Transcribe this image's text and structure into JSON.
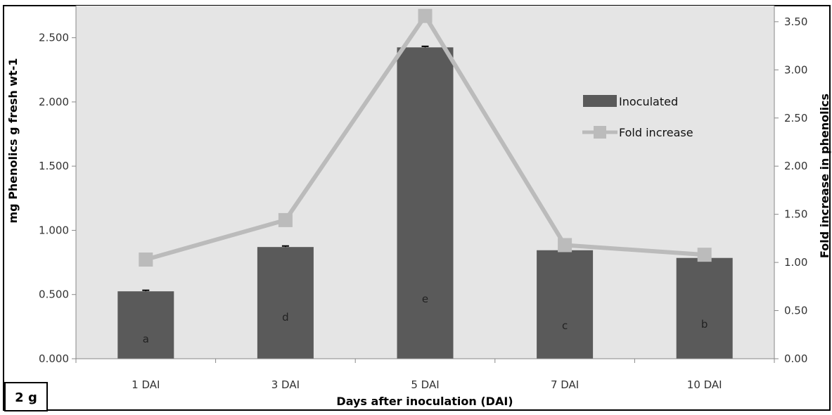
{
  "chart_data": {
    "type": "bar",
    "title": "",
    "xlabel": "Days after inoculation (DAI)",
    "ylabel": "mg Phenolics g fresh wt-1",
    "y2label": "Fold increase in phenolics",
    "categories": [
      "1 DAI",
      "3 DAI",
      "5 DAI",
      "7 DAI",
      "10 DAI"
    ],
    "ylim": [
      0,
      2.75
    ],
    "y2lim": [
      0,
      3.667
    ],
    "yticks": [
      "0.000",
      "0.500",
      "1.000",
      "1.500",
      "2.000",
      "2.500"
    ],
    "y2ticks": [
      "0.00",
      "0.50",
      "1.00",
      "1.50",
      "2.00",
      "2.50",
      "3.00",
      "3.50"
    ],
    "grid": false,
    "legend_position": "top-right",
    "series": [
      {
        "name": "Inoculated",
        "type": "bar",
        "axis": "left",
        "color": "#5a5a5a",
        "values": [
          0.525,
          0.87,
          2.425,
          0.845,
          0.785
        ],
        "error": [
          0.008,
          0.008,
          0.008,
          0.008,
          0.008
        ],
        "letters": [
          "a",
          "d",
          "e",
          "c",
          "b"
        ]
      },
      {
        "name": "Fold increase",
        "type": "line",
        "axis": "right",
        "color": "#bbbbbb",
        "values": [
          1.03,
          1.44,
          3.56,
          1.18,
          1.08
        ]
      }
    ],
    "figure_label": "2 g",
    "colors": {
      "plot_background": "#e5e5e5",
      "bar": "#5a5a5a",
      "line": "#bbbbbb",
      "axis": "#888888",
      "frame": "#000000"
    }
  }
}
